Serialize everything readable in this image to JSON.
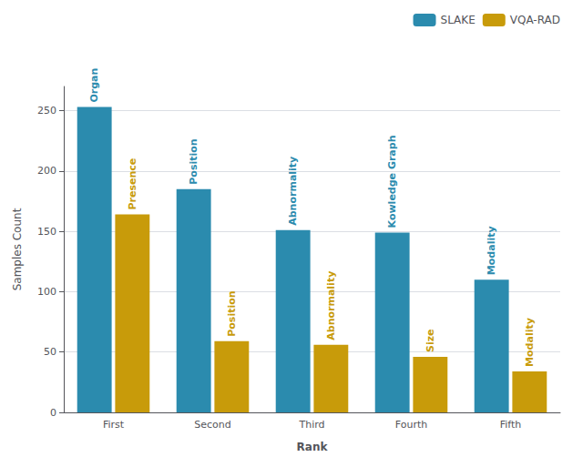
{
  "chart_data": {
    "type": "bar",
    "categories": [
      "First",
      "Second",
      "Third",
      "Fourth",
      "Fifth"
    ],
    "series": [
      {
        "name": "SLAKE",
        "color": "#2B8BAE",
        "values": [
          253,
          185,
          151,
          149,
          110
        ],
        "annotations": [
          "Organ",
          "Position",
          "Abnormality",
          "Kowledge Graph",
          "Modality"
        ]
      },
      {
        "name": "VQA-RAD",
        "color": "#C89B0A",
        "values": [
          164,
          59,
          56,
          46,
          34
        ],
        "annotations": [
          "Presence",
          "Position",
          "Abnormality",
          "Size",
          "Modality"
        ]
      }
    ],
    "xlabel": "Rank",
    "ylabel": "Samples Count",
    "ylim": [
      0,
      270
    ],
    "yticks": [
      0,
      50,
      100,
      150,
      200,
      250
    ],
    "grid": true,
    "legend": "upper right"
  }
}
